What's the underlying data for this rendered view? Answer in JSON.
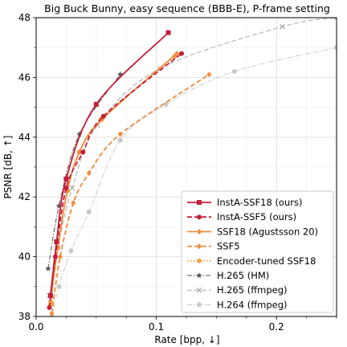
{
  "chart_data": {
    "type": "line",
    "title": "Big Buck Bunny, easy sequence (BBB-E), P-frame setting",
    "xlabel": "Rate [bpp, ↓]",
    "ylabel": "PSNR [dB, ↑]",
    "xlim": [
      0.0,
      0.25
    ],
    "ylim": [
      38,
      48
    ],
    "xticks": [
      0.0,
      0.1,
      0.2
    ],
    "xtick_labels": [
      "0.0",
      "0.1",
      "0.2"
    ],
    "yticks": [
      38,
      40,
      42,
      44,
      46,
      48
    ],
    "ytick_labels": [
      "38",
      "40",
      "42",
      "44",
      "46",
      "48"
    ],
    "grid": true,
    "legend_position": "bottom-right",
    "series": [
      {
        "name": "InstA-SSF18 (ours)",
        "color": "#c41e3a",
        "dash": "solid",
        "marker": "square",
        "points": [
          [
            0.012,
            38.7
          ],
          [
            0.017,
            40.5
          ],
          [
            0.025,
            42.6
          ],
          [
            0.05,
            45.1
          ],
          [
            0.11,
            47.5
          ]
        ]
      },
      {
        "name": "InstA-SSF5 (ours)",
        "color": "#c41e3a",
        "dash": "dashed",
        "marker": "circle",
        "points": [
          [
            0.011,
            38.3
          ],
          [
            0.016,
            40.0
          ],
          [
            0.025,
            42.3
          ],
          [
            0.039,
            43.5
          ],
          [
            0.056,
            44.7
          ],
          [
            0.121,
            46.8
          ]
        ]
      },
      {
        "name": "SSF18 (Agustsson 20)",
        "color": "#f08c3c",
        "dash": "solid",
        "marker": "diamond",
        "points": [
          [
            0.012,
            38.5
          ],
          [
            0.018,
            40.3
          ],
          [
            0.026,
            42.2
          ],
          [
            0.036,
            43.5
          ],
          [
            0.055,
            44.6
          ],
          [
            0.117,
            46.8
          ]
        ]
      },
      {
        "name": "SSF5",
        "color": "#f08c3c",
        "dash": "dashed",
        "marker": "diamond",
        "points": [
          [
            0.013,
            38.1
          ],
          [
            0.02,
            40.0
          ],
          [
            0.031,
            41.8
          ],
          [
            0.044,
            42.8
          ],
          [
            0.07,
            44.1
          ],
          [
            0.144,
            46.1
          ]
        ]
      },
      {
        "name": "Encoder-tuned SSF18",
        "color": "#f4a340",
        "dash": "dotted",
        "marker": "circle",
        "points": [
          [
            0.012,
            38.4
          ],
          [
            0.018,
            40.3
          ],
          [
            0.026,
            42.2
          ],
          [
            0.036,
            43.5
          ],
          [
            0.054,
            44.6
          ],
          [
            0.115,
            46.7
          ]
        ]
      },
      {
        "name": "H.265 (HM)",
        "color": "#555555",
        "dash": "dashdot",
        "marker": "star",
        "points": [
          [
            0.01,
            39.6
          ],
          [
            0.019,
            41.7
          ],
          [
            0.036,
            44.1
          ],
          [
            0.07,
            46.1
          ]
        ]
      },
      {
        "name": "H.265 (ffmpeg)",
        "color": "#aaaaaa",
        "dash": "dashed",
        "marker": "x",
        "points": [
          [
            0.011,
            38.7
          ],
          [
            0.018,
            40.3
          ],
          [
            0.03,
            42.3
          ],
          [
            0.051,
            44.4
          ],
          [
            0.103,
            46.3
          ],
          [
            0.205,
            47.7
          ],
          [
            0.25,
            48.0
          ]
        ]
      },
      {
        "name": "H.264 (ffmpeg)",
        "color": "#c8c8c8",
        "dash": "dashdot",
        "marker": "circle",
        "points": [
          [
            0.013,
            38.0
          ],
          [
            0.019,
            39.0
          ],
          [
            0.029,
            40.2
          ],
          [
            0.044,
            41.5
          ],
          [
            0.07,
            43.9
          ],
          [
            0.108,
            45.1
          ],
          [
            0.165,
            46.2
          ],
          [
            0.25,
            47.0
          ]
        ]
      }
    ]
  }
}
